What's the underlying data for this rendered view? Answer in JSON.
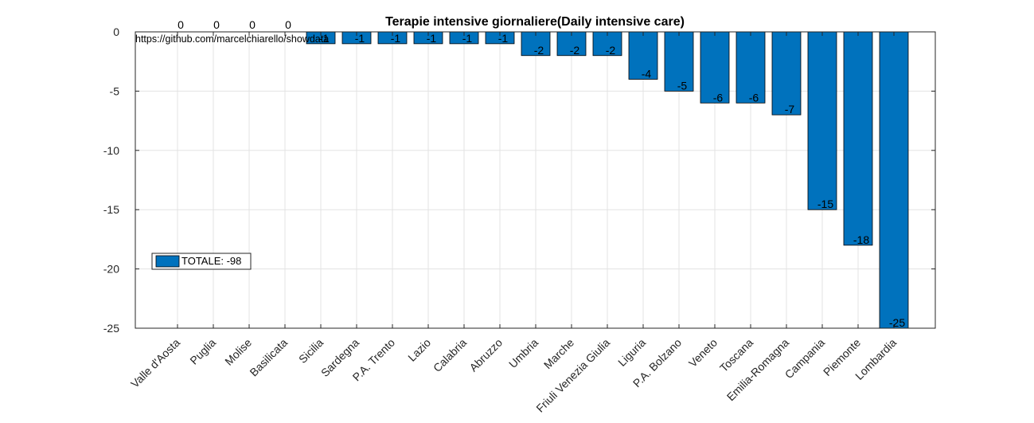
{
  "chart_data": {
    "type": "bar",
    "title": "Terapie intensive giornaliere(Daily intensive care)",
    "source_text": "https://github.com/marcelchiarello/showdata",
    "categories": [
      "Valle d'Aosta",
      "Puglia",
      "Molise",
      "Basilicata",
      "Sicilia",
      "Sardegna",
      "P.A. Trento",
      "Lazio",
      "Calabria",
      "Abruzzo",
      "Umbria",
      "Marche",
      "Friuli Venezia Giulia",
      "Liguria",
      "P.A. Bolzano",
      "Veneto",
      "Toscana",
      "Emilia-Romagna",
      "Campania",
      "Piemonte",
      "Lombardia"
    ],
    "values": [
      0,
      0,
      0,
      0,
      -1,
      -1,
      -1,
      -1,
      -1,
      -1,
      -2,
      -2,
      -2,
      -4,
      -5,
      -6,
      -6,
      -7,
      -15,
      -18,
      -25
    ],
    "data_labels": [
      "0",
      "0",
      "0",
      "0",
      "-1",
      "-1",
      "-1",
      "-1",
      "-1",
      "-1",
      "-2",
      "-2",
      "-2",
      "-4",
      "-5",
      "-6",
      "-6",
      "-7",
      "-15",
      "-18",
      "-25"
    ],
    "ylim": [
      -25,
      0
    ],
    "yticks": [
      0,
      -5,
      -10,
      -15,
      -20,
      -25
    ],
    "ytick_labels": [
      "0",
      "-5",
      "-10",
      "-15",
      "-20",
      "-25"
    ],
    "grid": true,
    "legend": {
      "label": "TOTALE: -98",
      "position": "left"
    },
    "colors": {
      "bar": "#0072bd",
      "grid": "#e3e3e3",
      "axis": "#262626"
    }
  }
}
